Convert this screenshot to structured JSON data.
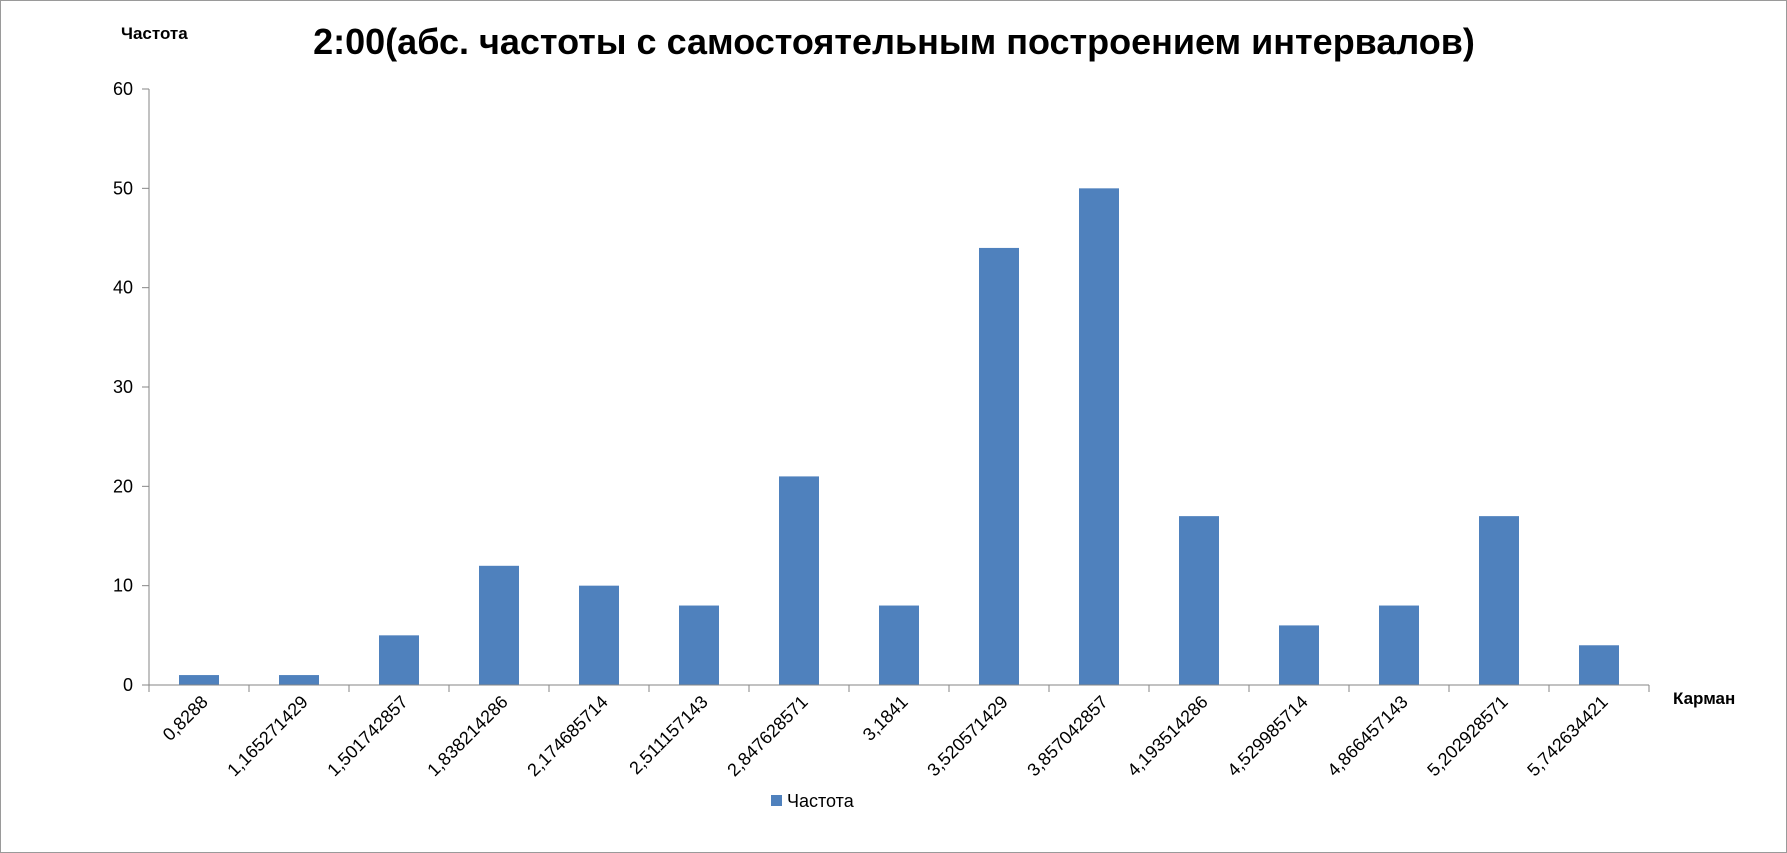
{
  "chart_data": {
    "type": "bar",
    "title": "2:00(абс. частоты с самостоятельным построением интервалов)",
    "xlabel": "Карман",
    "ylabel": "Частота",
    "categories": [
      "0,8288",
      "1,165271429",
      "1,501742857",
      "1,838214286",
      "2,174685714",
      "2,511157143",
      "2,847628571",
      "3,1841",
      "3,520571429",
      "3,857042857",
      "4,193514286",
      "4,529985714",
      "4,866457143",
      "5,202928571",
      "5,742634421"
    ],
    "series": [
      {
        "name": "Частота",
        "values": [
          1,
          1,
          5,
          12,
          10,
          8,
          21,
          8,
          44,
          50,
          17,
          6,
          8,
          17,
          4
        ]
      }
    ],
    "ylim": [
      0,
      60
    ],
    "yticks": [
      0,
      10,
      20,
      30,
      40,
      50,
      60
    ],
    "grid": false,
    "legend": "bottom",
    "colors": {
      "bar": "#4f81bd",
      "axis": "#868686"
    }
  }
}
